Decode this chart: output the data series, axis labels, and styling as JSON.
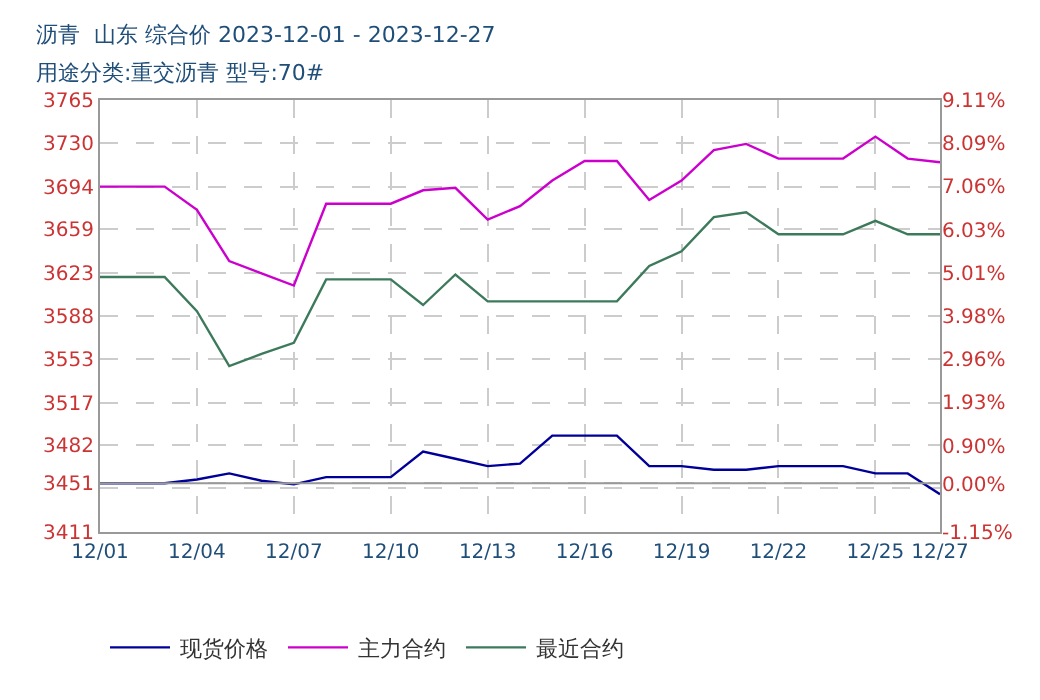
{
  "chart_data": {
    "type": "line",
    "title": "沥青  山东 综合价 2023-12-01 - 2023-12-27",
    "subtitle": "用途分类:重交沥青 型号:70#",
    "x": [
      "2023-12-01",
      "2023-12-02",
      "2023-12-03",
      "2023-12-04",
      "2023-12-05",
      "2023-12-06",
      "2023-12-07",
      "2023-12-08",
      "2023-12-09",
      "2023-12-10",
      "2023-12-11",
      "2023-12-12",
      "2023-12-13",
      "2023-12-14",
      "2023-12-15",
      "2023-12-16",
      "2023-12-17",
      "2023-12-18",
      "2023-12-19",
      "2023-12-20",
      "2023-12-21",
      "2023-12-22",
      "2023-12-23",
      "2023-12-24",
      "2023-12-25",
      "2023-12-26",
      "2023-12-27"
    ],
    "series": [
      {
        "name": "现货价格",
        "color": "#000099",
        "values": [
          3451,
          3451,
          3451,
          3454,
          3459,
          3453,
          3450,
          3456,
          3456,
          3456,
          3477,
          3471,
          3465,
          3467,
          3490,
          3490,
          3490,
          3465,
          3465,
          3462,
          3462,
          3465,
          3465,
          3465,
          3459,
          3459,
          3442
        ]
      },
      {
        "name": "主力合约",
        "color": "#cc00cc",
        "values": [
          3694,
          3694,
          3694,
          3675,
          3633,
          3623,
          3613,
          3680,
          3680,
          3680,
          3691,
          3693,
          3667,
          3678,
          3699,
          3715,
          3715,
          3683,
          3699,
          3724,
          3729,
          3717,
          3717,
          3717,
          3735,
          3717,
          3714
        ]
      },
      {
        "name": "最近合约",
        "color": "#3d7a5c",
        "values": [
          3620,
          3620,
          3620,
          3592,
          3547,
          3557,
          3566,
          3618,
          3618,
          3618,
          3597,
          3622,
          3600,
          3600,
          3600,
          3600,
          3600,
          3629,
          3641,
          3669,
          3673,
          3655,
          3655,
          3655,
          3666,
          3655,
          3655
        ]
      }
    ],
    "xlim": [
      "2023-12-01",
      "2023-12-27"
    ],
    "xticks": [
      {
        "value": "2023-12-01",
        "label": "12/01"
      },
      {
        "value": "2023-12-04",
        "label": "12/04"
      },
      {
        "value": "2023-12-07",
        "label": "12/07"
      },
      {
        "value": "2023-12-10",
        "label": "12/10"
      },
      {
        "value": "2023-12-13",
        "label": "12/13"
      },
      {
        "value": "2023-12-16",
        "label": "12/16"
      },
      {
        "value": "2023-12-19",
        "label": "12/19"
      },
      {
        "value": "2023-12-22",
        "label": "12/22"
      },
      {
        "value": "2023-12-25",
        "label": "12/25"
      },
      {
        "value": "2023-12-27",
        "label": "12/27"
      }
    ],
    "ylim": [
      3411,
      3765
    ],
    "yticks": [
      3411,
      {
        "value": 3446.7,
        "label": null
      },
      3451,
      3482,
      3517,
      3553,
      3588,
      3623,
      3659,
      3694,
      3730,
      3765
    ],
    "y2lim": [
      -1.15,
      9.11
    ],
    "y2ticks": [
      {
        "value": -1.15,
        "label": "-1.15%"
      },
      {
        "value": 0,
        "label": "0.00%"
      },
      {
        "value": 0.9,
        "label": "0.90%"
      },
      {
        "value": 1.93,
        "label": "1.93%"
      },
      {
        "value": 2.96,
        "label": "2.96%"
      },
      {
        "value": 3.98,
        "label": "3.98%"
      },
      {
        "value": 5.01,
        "label": "5.01%"
      },
      {
        "value": 6.03,
        "label": "6.03%"
      },
      {
        "value": 7.06,
        "label": "7.06%"
      },
      {
        "value": 8.09,
        "label": "8.09%"
      },
      {
        "value": 9.11,
        "label": "9.11%"
      }
    ],
    "ref_lines": [
      {
        "axis": "y",
        "value": 3451,
        "color": "#999999"
      }
    ],
    "grid": true,
    "legend": "bottom",
    "marker": "none",
    "line_style": "solid"
  }
}
